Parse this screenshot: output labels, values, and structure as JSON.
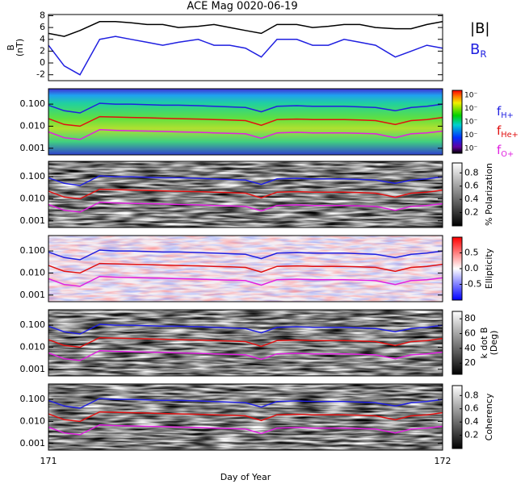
{
  "chart_data": [
    {
      "type": "line",
      "title": "ACE Mag 0020-06-19",
      "y_label": [
        "B",
        "(nT)"
      ],
      "xlim": [
        171,
        172
      ],
      "xticks": [
        171,
        172
      ],
      "ylim": [
        -3,
        8.2
      ],
      "yticks": [
        -2,
        0,
        2,
        4,
        6,
        8
      ],
      "x": [
        171.0,
        171.04,
        171.08,
        171.13,
        171.17,
        171.21,
        171.25,
        171.29,
        171.33,
        171.38,
        171.42,
        171.46,
        171.5,
        171.54,
        171.58,
        171.63,
        171.67,
        171.71,
        171.75,
        171.79,
        171.83,
        171.88,
        171.92,
        171.96,
        172.0
      ],
      "series": [
        {
          "name": "|B|",
          "color": "#000000",
          "values": [
            5,
            4.5,
            5.5,
            7,
            7,
            6.8,
            6.5,
            6.5,
            6,
            6.2,
            6.5,
            6,
            5.5,
            5,
            6.5,
            6.5,
            6,
            6.2,
            6.5,
            6.5,
            6,
            5.8,
            5.8,
            6.5,
            7
          ]
        },
        {
          "name": "B",
          "subscript": "R",
          "color": "#1f1fe0",
          "values": [
            3,
            -0.5,
            -2,
            4,
            4.5,
            4,
            3.5,
            3,
            3.5,
            4,
            3,
            3,
            2.5,
            1,
            4,
            4,
            3,
            3,
            4,
            3.5,
            3,
            1,
            2,
            3,
            2.5
          ]
        }
      ]
    },
    {
      "type": "spectrogram",
      "colormap": "rainbow",
      "log": true,
      "xlim": [
        171,
        172
      ],
      "xticks": [
        171,
        172
      ],
      "ylim": [
        0.0005,
        0.5
      ],
      "yticks": [
        {
          "value": 0.001,
          "label": "0.001"
        },
        {
          "value": 0.01,
          "label": "0.010"
        },
        {
          "value": 0.1,
          "label": "0.100"
        }
      ],
      "colorbar_labels": [
        "10⁻",
        "10⁻",
        "10⁻",
        "10⁻",
        "10⁻"
      ],
      "x": [
        171.0,
        171.04,
        171.08,
        171.13,
        171.17,
        171.21,
        171.25,
        171.29,
        171.33,
        171.38,
        171.42,
        171.46,
        171.5,
        171.54,
        171.58,
        171.63,
        171.67,
        171.71,
        171.75,
        171.79,
        171.83,
        171.88,
        171.92,
        171.96,
        172.0
      ],
      "series": [
        {
          "name": "f",
          "subscript": "H+",
          "color": "#1f1fe0",
          "values": [
            0.09,
            0.05,
            0.04,
            0.11,
            0.1,
            0.1,
            0.095,
            0.09,
            0.09,
            0.085,
            0.08,
            0.075,
            0.07,
            0.045,
            0.08,
            0.085,
            0.08,
            0.08,
            0.08,
            0.075,
            0.07,
            0.05,
            0.07,
            0.08,
            0.1
          ]
        },
        {
          "name": "f",
          "subscript": "He+",
          "color": "#e01010",
          "values": [
            0.022,
            0.012,
            0.01,
            0.027,
            0.026,
            0.025,
            0.024,
            0.023,
            0.022,
            0.021,
            0.02,
            0.019,
            0.018,
            0.011,
            0.02,
            0.021,
            0.02,
            0.02,
            0.02,
            0.019,
            0.018,
            0.012,
            0.018,
            0.02,
            0.025
          ]
        },
        {
          "name": "f",
          "subscript": "O+",
          "color": "#e020e0",
          "values": [
            0.0055,
            0.003,
            0.0025,
            0.007,
            0.0065,
            0.0062,
            0.006,
            0.0058,
            0.0055,
            0.0053,
            0.005,
            0.0048,
            0.0045,
            0.0028,
            0.005,
            0.0053,
            0.005,
            0.005,
            0.005,
            0.0048,
            0.0045,
            0.003,
            0.0045,
            0.005,
            0.006
          ]
        }
      ]
    },
    {
      "type": "spectrogram",
      "colormap": "gray",
      "log": true,
      "xlim": [
        171,
        172
      ],
      "xticks": [
        171,
        172
      ],
      "ylim": [
        0.0005,
        0.5
      ],
      "yticks": [
        {
          "value": 0.001,
          "label": "0.001"
        },
        {
          "value": 0.01,
          "label": "0.010"
        },
        {
          "value": 0.1,
          "label": "0.100"
        }
      ],
      "colorbar_label": [
        "% Polarization"
      ],
      "colorbar_lim": [
        0,
        0.95
      ],
      "colorbar_ticks": [
        0.2,
        0.4,
        0.6,
        0.8
      ]
    },
    {
      "type": "spectrogram",
      "colormap": "redblue",
      "log": true,
      "xlim": [
        171,
        172
      ],
      "xticks": [
        171,
        172
      ],
      "ylim": [
        0.0005,
        0.5
      ],
      "yticks": [
        {
          "value": 0.001,
          "label": "0.001"
        },
        {
          "value": 0.01,
          "label": "0.010"
        },
        {
          "value": 0.1,
          "label": "0.100"
        }
      ],
      "colorbar_label": [
        "Ellipticity"
      ],
      "colorbar_lim": [
        -1,
        1
      ],
      "colorbar_ticks": [
        -0.5,
        {
          "value": 0,
          "label": "0.0"
        },
        0.5
      ]
    },
    {
      "type": "spectrogram",
      "colormap": "gray",
      "log": true,
      "xlim": [
        171,
        172
      ],
      "xticks": [
        171,
        172
      ],
      "ylim": [
        0.0005,
        0.5
      ],
      "yticks": [
        {
          "value": 0.001,
          "label": "0.001"
        },
        {
          "value": 0.01,
          "label": "0.010"
        },
        {
          "value": 0.1,
          "label": "0.100"
        }
      ],
      "colorbar_label": [
        "k dot B",
        "(Deg)"
      ],
      "colorbar_lim": [
        5,
        90
      ],
      "colorbar_ticks": [
        20,
        40,
        60,
        80
      ]
    },
    {
      "type": "spectrogram",
      "colormap": "gray",
      "log": true,
      "xlim": [
        171,
        172
      ],
      "xticks": [
        171,
        172
      ],
      "x_label": "Day of Year",
      "ylim": [
        0.0005,
        0.5
      ],
      "yticks": [
        {
          "value": 0.001,
          "label": "0.001"
        },
        {
          "value": 0.01,
          "label": "0.010"
        },
        {
          "value": 0.1,
          "label": "0.100"
        }
      ],
      "colorbar_label": [
        "Coherency"
      ],
      "colorbar_lim": [
        0,
        0.95
      ],
      "colorbar_ticks": [
        0.2,
        0.4,
        0.6,
        0.8
      ]
    }
  ]
}
